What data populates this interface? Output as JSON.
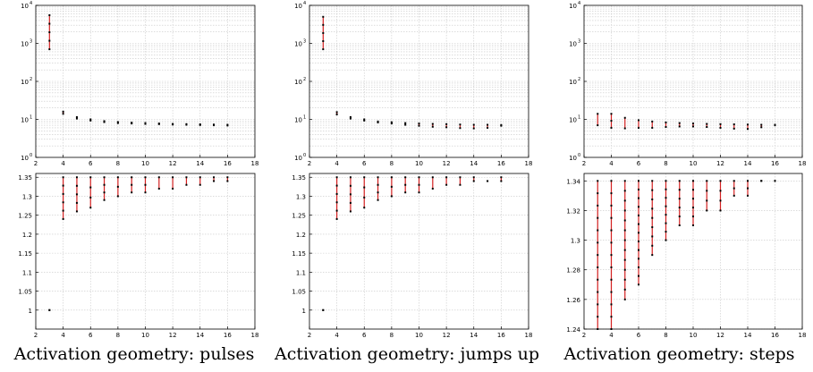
{
  "captions": [
    "Activation geometry: pulses",
    "Activation geometry: jumps up",
    "Activation geometry: steps"
  ],
  "colors": {
    "range_line": "#d42020",
    "point": "#000000",
    "grid": "#c8c8c8",
    "axis": "#000000"
  },
  "chart_data": [
    {
      "type": "scatter",
      "panel": "top-left",
      "yscale": "log",
      "xlim": [
        2,
        18
      ],
      "ylim": [
        1,
        10000
      ],
      "xticks": [
        2,
        4,
        6,
        8,
        10,
        12,
        14,
        16,
        18
      ],
      "yticks": [
        1,
        10,
        100,
        1000,
        10000
      ],
      "ytick_labels": [
        "10^0",
        "10^1",
        "10^2",
        "10^3",
        "10^4"
      ],
      "grid": true,
      "ranges": [
        {
          "x": 3,
          "min": 700,
          "max": 5500
        },
        {
          "x": 4,
          "min": 14,
          "max": 16
        },
        {
          "x": 5,
          "min": 10.5,
          "max": 11.5
        },
        {
          "x": 6,
          "min": 9.3,
          "max": 10
        },
        {
          "x": 7,
          "min": 8.5,
          "max": 9
        },
        {
          "x": 8,
          "min": 8,
          "max": 8.5
        },
        {
          "x": 9,
          "min": 7.8,
          "max": 8.2
        },
        {
          "x": 10,
          "min": 7.6,
          "max": 8
        },
        {
          "x": 11,
          "min": 7.5,
          "max": 7.8
        },
        {
          "x": 12,
          "min": 7.3,
          "max": 7.6
        },
        {
          "x": 13,
          "min": 7.2,
          "max": 7.5
        },
        {
          "x": 14,
          "min": 7.1,
          "max": 7.4
        },
        {
          "x": 15,
          "min": 7,
          "max": 7.3
        },
        {
          "x": 16,
          "min": 6.9,
          "max": 7.2
        }
      ]
    },
    {
      "type": "scatter",
      "panel": "top-middle",
      "yscale": "log",
      "xlim": [
        2,
        18
      ],
      "ylim": [
        1,
        10000
      ],
      "xticks": [
        2,
        4,
        6,
        8,
        10,
        12,
        14,
        16,
        18
      ],
      "yticks": [
        1,
        10,
        100,
        1000,
        10000
      ],
      "ytick_labels": [
        "10^0",
        "10^1",
        "10^2",
        "10^3",
        "10^4"
      ],
      "grid": true,
      "ranges": [
        {
          "x": 3,
          "min": 700,
          "max": 5000
        },
        {
          "x": 4,
          "min": 13.5,
          "max": 15.5
        },
        {
          "x": 5,
          "min": 10.5,
          "max": 11.5
        },
        {
          "x": 6,
          "min": 9.3,
          "max": 10
        },
        {
          "x": 7,
          "min": 8.3,
          "max": 8.8
        },
        {
          "x": 8,
          "min": 7.8,
          "max": 8.4
        },
        {
          "x": 9,
          "min": 7.2,
          "max": 8
        },
        {
          "x": 10,
          "min": 6.8,
          "max": 7.8
        },
        {
          "x": 11,
          "min": 6.4,
          "max": 7.6
        },
        {
          "x": 12,
          "min": 6.2,
          "max": 7.5
        },
        {
          "x": 13,
          "min": 5.9,
          "max": 7.3
        },
        {
          "x": 14,
          "min": 5.8,
          "max": 7.2
        },
        {
          "x": 15,
          "min": 6,
          "max": 7.2
        },
        {
          "x": 16,
          "min": 6.8,
          "max": 7.1
        }
      ]
    },
    {
      "type": "scatter",
      "panel": "top-right",
      "yscale": "log",
      "xlim": [
        2,
        18
      ],
      "ylim": [
        1,
        10000
      ],
      "xticks": [
        2,
        4,
        6,
        8,
        10,
        12,
        14,
        16,
        18
      ],
      "yticks": [
        1,
        10,
        100,
        1000,
        10000
      ],
      "ytick_labels": [
        "10^0",
        "10^1",
        "10^2",
        "10^3",
        "10^4"
      ],
      "grid": true,
      "ranges": [
        {
          "x": 3,
          "min": 7,
          "max": 14
        },
        {
          "x": 4,
          "min": 6,
          "max": 14
        },
        {
          "x": 5,
          "min": 5.8,
          "max": 11
        },
        {
          "x": 6,
          "min": 6,
          "max": 9.5
        },
        {
          "x": 7,
          "min": 6,
          "max": 8.8
        },
        {
          "x": 8,
          "min": 6.3,
          "max": 8.3
        },
        {
          "x": 9,
          "min": 6.5,
          "max": 8
        },
        {
          "x": 10,
          "min": 6.5,
          "max": 7.8
        },
        {
          "x": 11,
          "min": 6.3,
          "max": 7.6
        },
        {
          "x": 12,
          "min": 6,
          "max": 7.5
        },
        {
          "x": 13,
          "min": 5.7,
          "max": 7.4
        },
        {
          "x": 14,
          "min": 5.6,
          "max": 7.3
        },
        {
          "x": 15,
          "min": 6.2,
          "max": 7.2
        },
        {
          "x": 16,
          "min": 7,
          "max": 7.2
        }
      ]
    },
    {
      "type": "scatter",
      "panel": "bottom-left",
      "xlim": [
        2,
        18
      ],
      "ylim": [
        0.95,
        1.36
      ],
      "xticks": [
        2,
        4,
        6,
        8,
        10,
        12,
        14,
        16,
        18
      ],
      "yticks": [
        1,
        1.05,
        1.1,
        1.15,
        1.2,
        1.25,
        1.3,
        1.35
      ],
      "ytick_labels": [
        "1",
        "1.05",
        "1.1",
        "1.15",
        "1.2",
        "1.25",
        "1.3",
        "1.35"
      ],
      "grid": true,
      "ranges": [
        {
          "x": 3,
          "min": 1,
          "max": 1
        },
        {
          "x": 4,
          "min": 1.24,
          "max": 1.35
        },
        {
          "x": 5,
          "min": 1.26,
          "max": 1.35
        },
        {
          "x": 6,
          "min": 1.27,
          "max": 1.35
        },
        {
          "x": 7,
          "min": 1.29,
          "max": 1.35
        },
        {
          "x": 8,
          "min": 1.3,
          "max": 1.35
        },
        {
          "x": 9,
          "min": 1.31,
          "max": 1.35
        },
        {
          "x": 10,
          "min": 1.31,
          "max": 1.35
        },
        {
          "x": 11,
          "min": 1.32,
          "max": 1.35
        },
        {
          "x": 12,
          "min": 1.32,
          "max": 1.35
        },
        {
          "x": 13,
          "min": 1.33,
          "max": 1.35
        },
        {
          "x": 14,
          "min": 1.33,
          "max": 1.35
        },
        {
          "x": 15,
          "min": 1.34,
          "max": 1.35
        },
        {
          "x": 16,
          "min": 1.34,
          "max": 1.35
        }
      ]
    },
    {
      "type": "scatter",
      "panel": "bottom-middle",
      "xlim": [
        2,
        18
      ],
      "ylim": [
        0.95,
        1.36
      ],
      "xticks": [
        2,
        4,
        6,
        8,
        10,
        12,
        14,
        16,
        18
      ],
      "yticks": [
        1,
        1.05,
        1.1,
        1.15,
        1.2,
        1.25,
        1.3,
        1.35
      ],
      "ytick_labels": [
        "1",
        "1.05",
        "1.1",
        "1.15",
        "1.2",
        "1.25",
        "1.3",
        "1.35"
      ],
      "grid": true,
      "ranges": [
        {
          "x": 3,
          "min": 1,
          "max": 1
        },
        {
          "x": 4,
          "min": 1.24,
          "max": 1.35
        },
        {
          "x": 5,
          "min": 1.26,
          "max": 1.35
        },
        {
          "x": 6,
          "min": 1.27,
          "max": 1.35
        },
        {
          "x": 7,
          "min": 1.29,
          "max": 1.35
        },
        {
          "x": 8,
          "min": 1.3,
          "max": 1.35
        },
        {
          "x": 9,
          "min": 1.31,
          "max": 1.35
        },
        {
          "x": 10,
          "min": 1.31,
          "max": 1.35
        },
        {
          "x": 11,
          "min": 1.32,
          "max": 1.35
        },
        {
          "x": 12,
          "min": 1.33,
          "max": 1.35
        },
        {
          "x": 13,
          "min": 1.33,
          "max": 1.35
        },
        {
          "x": 14,
          "min": 1.34,
          "max": 1.35
        },
        {
          "x": 15,
          "min": 1.34,
          "max": 1.34
        },
        {
          "x": 16,
          "min": 1.34,
          "max": 1.35
        }
      ]
    },
    {
      "type": "scatter",
      "panel": "bottom-right",
      "xlim": [
        2,
        18
      ],
      "ylim": [
        1.24,
        1.345
      ],
      "xticks": [
        2,
        4,
        6,
        8,
        10,
        12,
        14,
        16,
        18
      ],
      "yticks": [
        1.24,
        1.26,
        1.28,
        1.3,
        1.32,
        1.34
      ],
      "ytick_labels": [
        "1.24",
        "1.26",
        "1.28",
        "1.3",
        "1.32",
        "1.34"
      ],
      "grid": true,
      "ranges": [
        {
          "x": 3,
          "min": 1.24,
          "max": 1.34
        },
        {
          "x": 4,
          "min": 1.24,
          "max": 1.34
        },
        {
          "x": 5,
          "min": 1.26,
          "max": 1.34
        },
        {
          "x": 6,
          "min": 1.27,
          "max": 1.34
        },
        {
          "x": 7,
          "min": 1.29,
          "max": 1.34
        },
        {
          "x": 8,
          "min": 1.3,
          "max": 1.34
        },
        {
          "x": 9,
          "min": 1.31,
          "max": 1.34
        },
        {
          "x": 10,
          "min": 1.31,
          "max": 1.34
        },
        {
          "x": 11,
          "min": 1.32,
          "max": 1.34
        },
        {
          "x": 12,
          "min": 1.32,
          "max": 1.34
        },
        {
          "x": 13,
          "min": 1.33,
          "max": 1.34
        },
        {
          "x": 14,
          "min": 1.33,
          "max": 1.34
        },
        {
          "x": 15,
          "min": 1.34,
          "max": 1.34
        },
        {
          "x": 16,
          "min": 1.34,
          "max": 1.34
        }
      ]
    }
  ]
}
